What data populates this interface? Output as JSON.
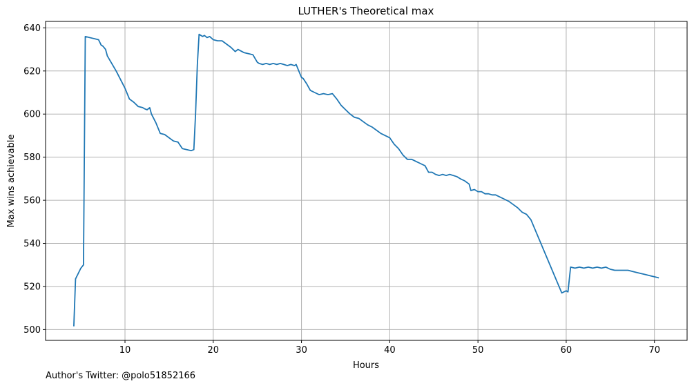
{
  "footer": {
    "author_note": "Author's Twitter: @polo51852166"
  },
  "chart_data": {
    "type": "line",
    "title": "LUTHER's Theoretical max",
    "xlabel": "Hours",
    "ylabel": "Max wins achievable",
    "xlim": [
      1.0,
      73.7
    ],
    "ylim": [
      495,
      643
    ],
    "x_ticks": [
      10,
      20,
      30,
      40,
      50,
      60,
      70
    ],
    "y_ticks": [
      500,
      520,
      540,
      560,
      580,
      600,
      620,
      640
    ],
    "grid": true,
    "line_color": "#1f77b4",
    "series": [
      {
        "x": [
          4.2,
          4.4,
          5.0,
          5.3,
          5.5,
          7.0,
          7.3,
          7.5,
          7.8,
          8.0,
          9.0,
          10.0,
          10.5,
          11.0,
          11.5,
          12.0,
          12.2,
          12.5,
          12.8,
          13.0,
          13.5,
          14.0,
          14.5,
          15.0,
          15.5,
          16.0,
          16.5,
          17.0,
          17.5,
          17.8,
          18.0,
          18.2,
          18.4,
          18.6,
          18.8,
          19.0,
          19.3,
          19.6,
          20.0,
          20.5,
          21.0,
          22.0,
          22.5,
          22.8,
          23.5,
          24.0,
          24.5,
          25.0,
          25.2,
          25.6,
          26.0,
          26.4,
          26.8,
          27.2,
          27.6,
          28.0,
          28.4,
          28.8,
          29.2,
          29.4,
          29.7,
          30.0,
          30.2,
          30.6,
          31.0,
          31.5,
          32.0,
          32.5,
          33.0,
          33.5,
          34.0,
          34.5,
          35.0,
          35.5,
          36.0,
          36.5,
          37.0,
          37.5,
          38.0,
          38.5,
          39.0,
          39.5,
          40.0,
          40.5,
          41.0,
          41.5,
          42.0,
          42.5,
          43.0,
          43.5,
          44.0,
          44.4,
          44.8,
          45.2,
          45.6,
          46.0,
          46.4,
          46.8,
          47.2,
          47.6,
          48.0,
          48.5,
          49.0,
          49.2,
          49.6,
          50.0,
          50.4,
          50.8,
          51.2,
          51.6,
          52.0,
          52.5,
          53.0,
          53.5,
          54.0,
          54.5,
          55.0,
          55.5,
          56.0,
          59.5,
          60.0,
          60.2,
          60.5,
          61.0,
          61.5,
          62.0,
          62.5,
          63.0,
          63.5,
          64.0,
          64.5,
          65.0,
          65.5,
          66.0,
          66.5,
          67.0,
          67.5,
          68.0,
          68.5,
          69.0,
          69.5,
          70.0,
          70.5
        ],
        "values": [
          501.5,
          523.5,
          528.5,
          530,
          636,
          634.5,
          632,
          631.5,
          630,
          627,
          620,
          612,
          607,
          605.5,
          603.5,
          603,
          602.5,
          602,
          603,
          600,
          596,
          591,
          590.5,
          589,
          587.5,
          587,
          584,
          583.5,
          583,
          583.5,
          600,
          623,
          637,
          636.5,
          636,
          636.5,
          635.5,
          636,
          634.5,
          634,
          634,
          631,
          629,
          630,
          628.5,
          628,
          627.5,
          624,
          623.5,
          623,
          623.5,
          623,
          623.5,
          623,
          623.5,
          623,
          622.5,
          623,
          622.5,
          623,
          620,
          617,
          616.5,
          614,
          611,
          610,
          609,
          609.5,
          609,
          609.5,
          607,
          604,
          602,
          600,
          598.5,
          598,
          596.5,
          595,
          594,
          592.5,
          591,
          590,
          589,
          586,
          584,
          581,
          579,
          579,
          578,
          577,
          576,
          573,
          573,
          572,
          571.5,
          572,
          571.5,
          572,
          571.5,
          571,
          570,
          569,
          567.5,
          564.5,
          565,
          564,
          564,
          563,
          563,
          562.5,
          562.5,
          561.5,
          560.5,
          559.5,
          558,
          556.5,
          554.5,
          553.5,
          551,
          517,
          518,
          517.5,
          529,
          528.5,
          529,
          528.5,
          529,
          528.5,
          529,
          528.5,
          529,
          528,
          527.5,
          527.5,
          527.5,
          527.5,
          527,
          526.5,
          526,
          525.5,
          525,
          524.5,
          524
        ]
      }
    ]
  }
}
